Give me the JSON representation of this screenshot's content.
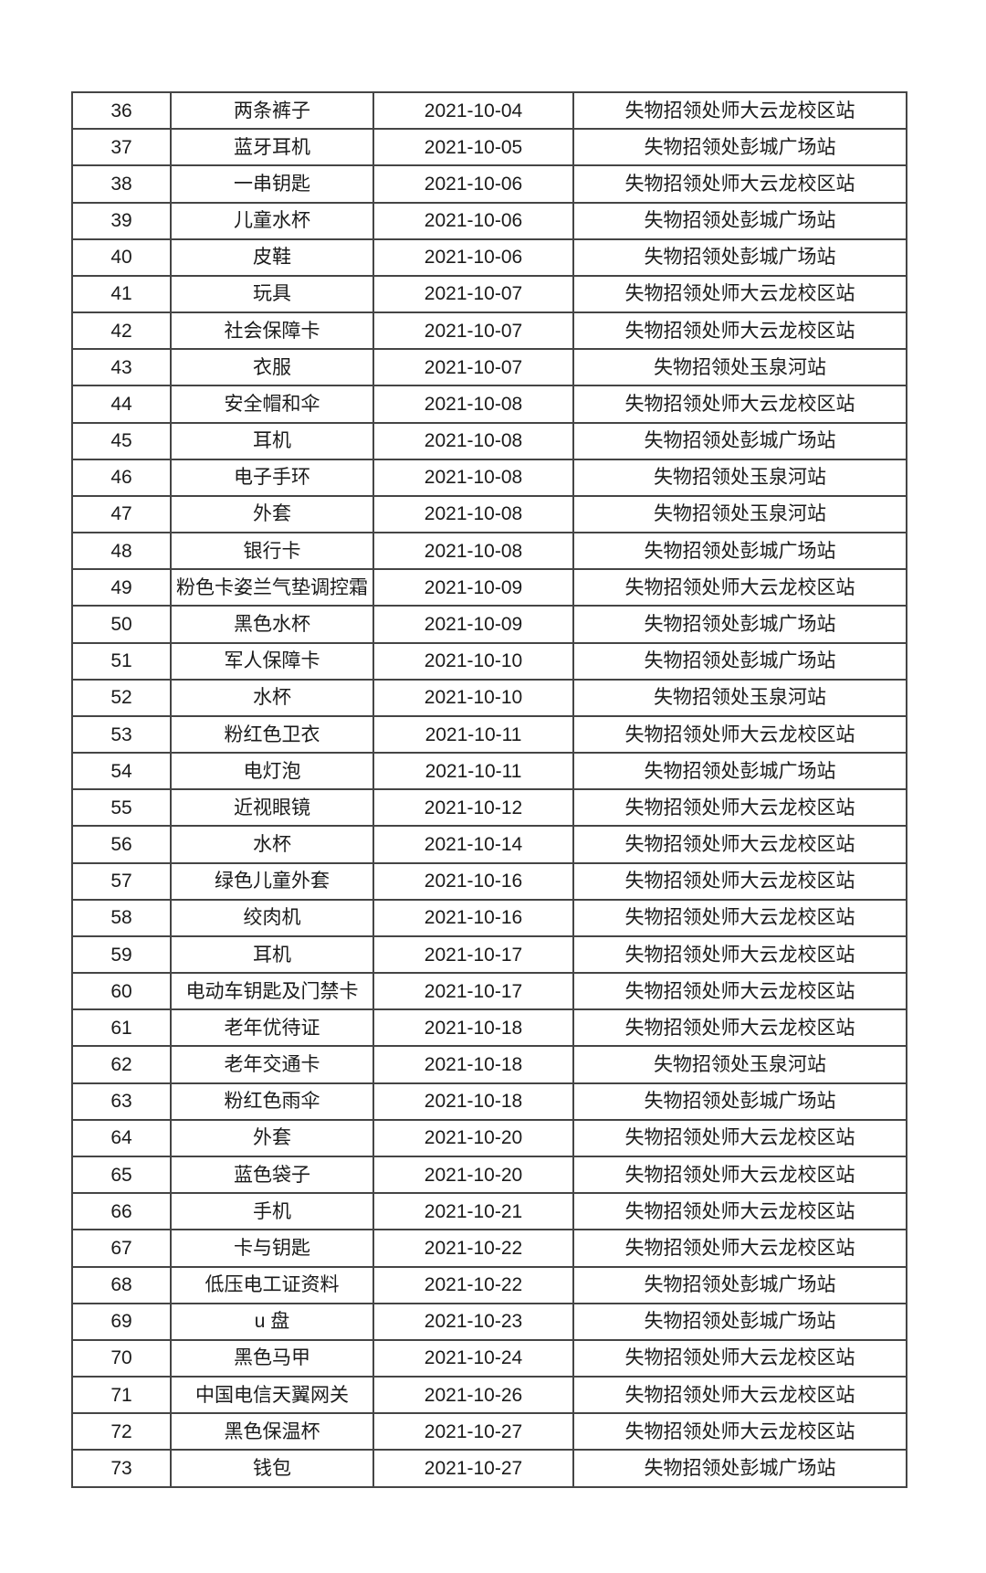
{
  "table": {
    "rows": [
      {
        "no": "36",
        "item": "两条裤子",
        "date": "2021-10-04",
        "location": "失物招领处师大云龙校区站"
      },
      {
        "no": "37",
        "item": "蓝牙耳机",
        "date": "2021-10-05",
        "location": "失物招领处彭城广场站"
      },
      {
        "no": "38",
        "item": "一串钥匙",
        "date": "2021-10-06",
        "location": "失物招领处师大云龙校区站"
      },
      {
        "no": "39",
        "item": "儿童水杯",
        "date": "2021-10-06",
        "location": "失物招领处彭城广场站"
      },
      {
        "no": "40",
        "item": "皮鞋",
        "date": "2021-10-06",
        "location": "失物招领处彭城广场站"
      },
      {
        "no": "41",
        "item": "玩具",
        "date": "2021-10-07",
        "location": "失物招领处师大云龙校区站"
      },
      {
        "no": "42",
        "item": "社会保障卡",
        "date": "2021-10-07",
        "location": "失物招领处师大云龙校区站"
      },
      {
        "no": "43",
        "item": "衣服",
        "date": "2021-10-07",
        "location": "失物招领处玉泉河站"
      },
      {
        "no": "44",
        "item": "安全帽和伞",
        "date": "2021-10-08",
        "location": "失物招领处师大云龙校区站"
      },
      {
        "no": "45",
        "item": "耳机",
        "date": "2021-10-08",
        "location": "失物招领处彭城广场站"
      },
      {
        "no": "46",
        "item": "电子手环",
        "date": "2021-10-08",
        "location": "失物招领处玉泉河站"
      },
      {
        "no": "47",
        "item": "外套",
        "date": "2021-10-08",
        "location": "失物招领处玉泉河站"
      },
      {
        "no": "48",
        "item": "银行卡",
        "date": "2021-10-08",
        "location": "失物招领处彭城广场站"
      },
      {
        "no": "49",
        "item": "粉色卡姿兰气垫调控霜",
        "date": "2021-10-09",
        "location": "失物招领处师大云龙校区站"
      },
      {
        "no": "50",
        "item": "黑色水杯",
        "date": "2021-10-09",
        "location": "失物招领处彭城广场站"
      },
      {
        "no": "51",
        "item": "军人保障卡",
        "date": "2021-10-10",
        "location": "失物招领处彭城广场站"
      },
      {
        "no": "52",
        "item": "水杯",
        "date": "2021-10-10",
        "location": "失物招领处玉泉河站"
      },
      {
        "no": "53",
        "item": "粉红色卫衣",
        "date": "2021-10-11",
        "location": "失物招领处师大云龙校区站"
      },
      {
        "no": "54",
        "item": "电灯泡",
        "date": "2021-10-11",
        "location": "失物招领处彭城广场站"
      },
      {
        "no": "55",
        "item": "近视眼镜",
        "date": "2021-10-12",
        "location": "失物招领处师大云龙校区站"
      },
      {
        "no": "56",
        "item": "水杯",
        "date": "2021-10-14",
        "location": "失物招领处师大云龙校区站"
      },
      {
        "no": "57",
        "item": "绿色儿童外套",
        "date": "2021-10-16",
        "location": "失物招领处师大云龙校区站"
      },
      {
        "no": "58",
        "item": "绞肉机",
        "date": "2021-10-16",
        "location": "失物招领处师大云龙校区站"
      },
      {
        "no": "59",
        "item": "耳机",
        "date": "2021-10-17",
        "location": "失物招领处师大云龙校区站"
      },
      {
        "no": "60",
        "item": "电动车钥匙及门禁卡",
        "date": "2021-10-17",
        "location": "失物招领处师大云龙校区站"
      },
      {
        "no": "61",
        "item": "老年优待证",
        "date": "2021-10-18",
        "location": "失物招领处师大云龙校区站"
      },
      {
        "no": "62",
        "item": "老年交通卡",
        "date": "2021-10-18",
        "location": "失物招领处玉泉河站"
      },
      {
        "no": "63",
        "item": "粉红色雨伞",
        "date": "2021-10-18",
        "location": "失物招领处彭城广场站"
      },
      {
        "no": "64",
        "item": "外套",
        "date": "2021-10-20",
        "location": "失物招领处师大云龙校区站"
      },
      {
        "no": "65",
        "item": "蓝色袋子",
        "date": "2021-10-20",
        "location": "失物招领处师大云龙校区站"
      },
      {
        "no": "66",
        "item": "手机",
        "date": "2021-10-21",
        "location": "失物招领处师大云龙校区站"
      },
      {
        "no": "67",
        "item": "卡与钥匙",
        "date": "2021-10-22",
        "location": "失物招领处师大云龙校区站"
      },
      {
        "no": "68",
        "item": "低压电工证资料",
        "date": "2021-10-22",
        "location": "失物招领处彭城广场站"
      },
      {
        "no": "69",
        "item": "u 盘",
        "date": "2021-10-23",
        "location": "失物招领处彭城广场站"
      },
      {
        "no": "70",
        "item": "黑色马甲",
        "date": "2021-10-24",
        "location": "失物招领处师大云龙校区站"
      },
      {
        "no": "71",
        "item": "中国电信天翼网关",
        "date": "2021-10-26",
        "location": "失物招领处师大云龙校区站"
      },
      {
        "no": "72",
        "item": "黑色保温杯",
        "date": "2021-10-27",
        "location": "失物招领处师大云龙校区站"
      },
      {
        "no": "73",
        "item": "钱包",
        "date": "2021-10-27",
        "location": "失物招领处彭城广场站"
      }
    ]
  },
  "colors": {
    "text": "#1b1b1b",
    "border": "#454545",
    "background": "#ffffff"
  }
}
